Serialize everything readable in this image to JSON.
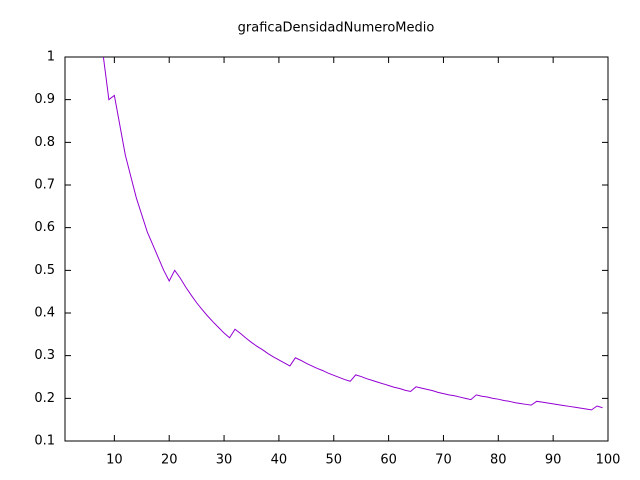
{
  "chart_data": {
    "type": "line",
    "title": "graficaDensidadNumeroMedio",
    "x": [
      8,
      9,
      10,
      11,
      12,
      13,
      14,
      15,
      16,
      17,
      18,
      19,
      20,
      21,
      22,
      23,
      24,
      25,
      26,
      27,
      28,
      29,
      30,
      31,
      32,
      33,
      34,
      35,
      36,
      37,
      38,
      39,
      40,
      41,
      42,
      43,
      44,
      45,
      46,
      47,
      48,
      49,
      50,
      51,
      52,
      53,
      54,
      55,
      56,
      57,
      58,
      59,
      60,
      61,
      62,
      63,
      64,
      65,
      66,
      67,
      68,
      69,
      70,
      71,
      72,
      73,
      74,
      75,
      76,
      77,
      78,
      79,
      80,
      81,
      82,
      83,
      84,
      85,
      86,
      87,
      88,
      89,
      90,
      91,
      92,
      93,
      94,
      95,
      96,
      97,
      98,
      99
    ],
    "series": [
      {
        "color": "#9400d3",
        "values": [
          1.0,
          0.9,
          0.91,
          0.84,
          0.77,
          0.72,
          0.67,
          0.63,
          0.59,
          0.56,
          0.53,
          0.5,
          0.475,
          0.5,
          0.482,
          0.461,
          0.442,
          0.424,
          0.408,
          0.393,
          0.379,
          0.366,
          0.353,
          0.342,
          0.362,
          0.352,
          0.341,
          0.331,
          0.322,
          0.314,
          0.305,
          0.297,
          0.29,
          0.283,
          0.276,
          0.295,
          0.289,
          0.282,
          0.276,
          0.27,
          0.265,
          0.259,
          0.254,
          0.249,
          0.244,
          0.24,
          0.255,
          0.251,
          0.246,
          0.242,
          0.238,
          0.234,
          0.23,
          0.226,
          0.223,
          0.219,
          0.216,
          0.227,
          0.224,
          0.221,
          0.218,
          0.214,
          0.211,
          0.208,
          0.206,
          0.203,
          0.2,
          0.197,
          0.208,
          0.205,
          0.203,
          0.2,
          0.198,
          0.195,
          0.193,
          0.19,
          0.188,
          0.186,
          0.184,
          0.193,
          0.191,
          0.189,
          0.187,
          0.185,
          0.183,
          0.181,
          0.179,
          0.177,
          0.175,
          0.173,
          0.182,
          0.178
        ]
      }
    ],
    "xlim": [
      1,
      100
    ],
    "ylim": [
      0.1,
      1
    ],
    "xticks": [
      10,
      20,
      30,
      40,
      50,
      60,
      70,
      80,
      90,
      100
    ],
    "yticks": [
      0.1,
      0.2,
      0.3,
      0.4,
      0.5,
      0.6,
      0.7,
      0.8,
      0.9,
      1
    ]
  }
}
